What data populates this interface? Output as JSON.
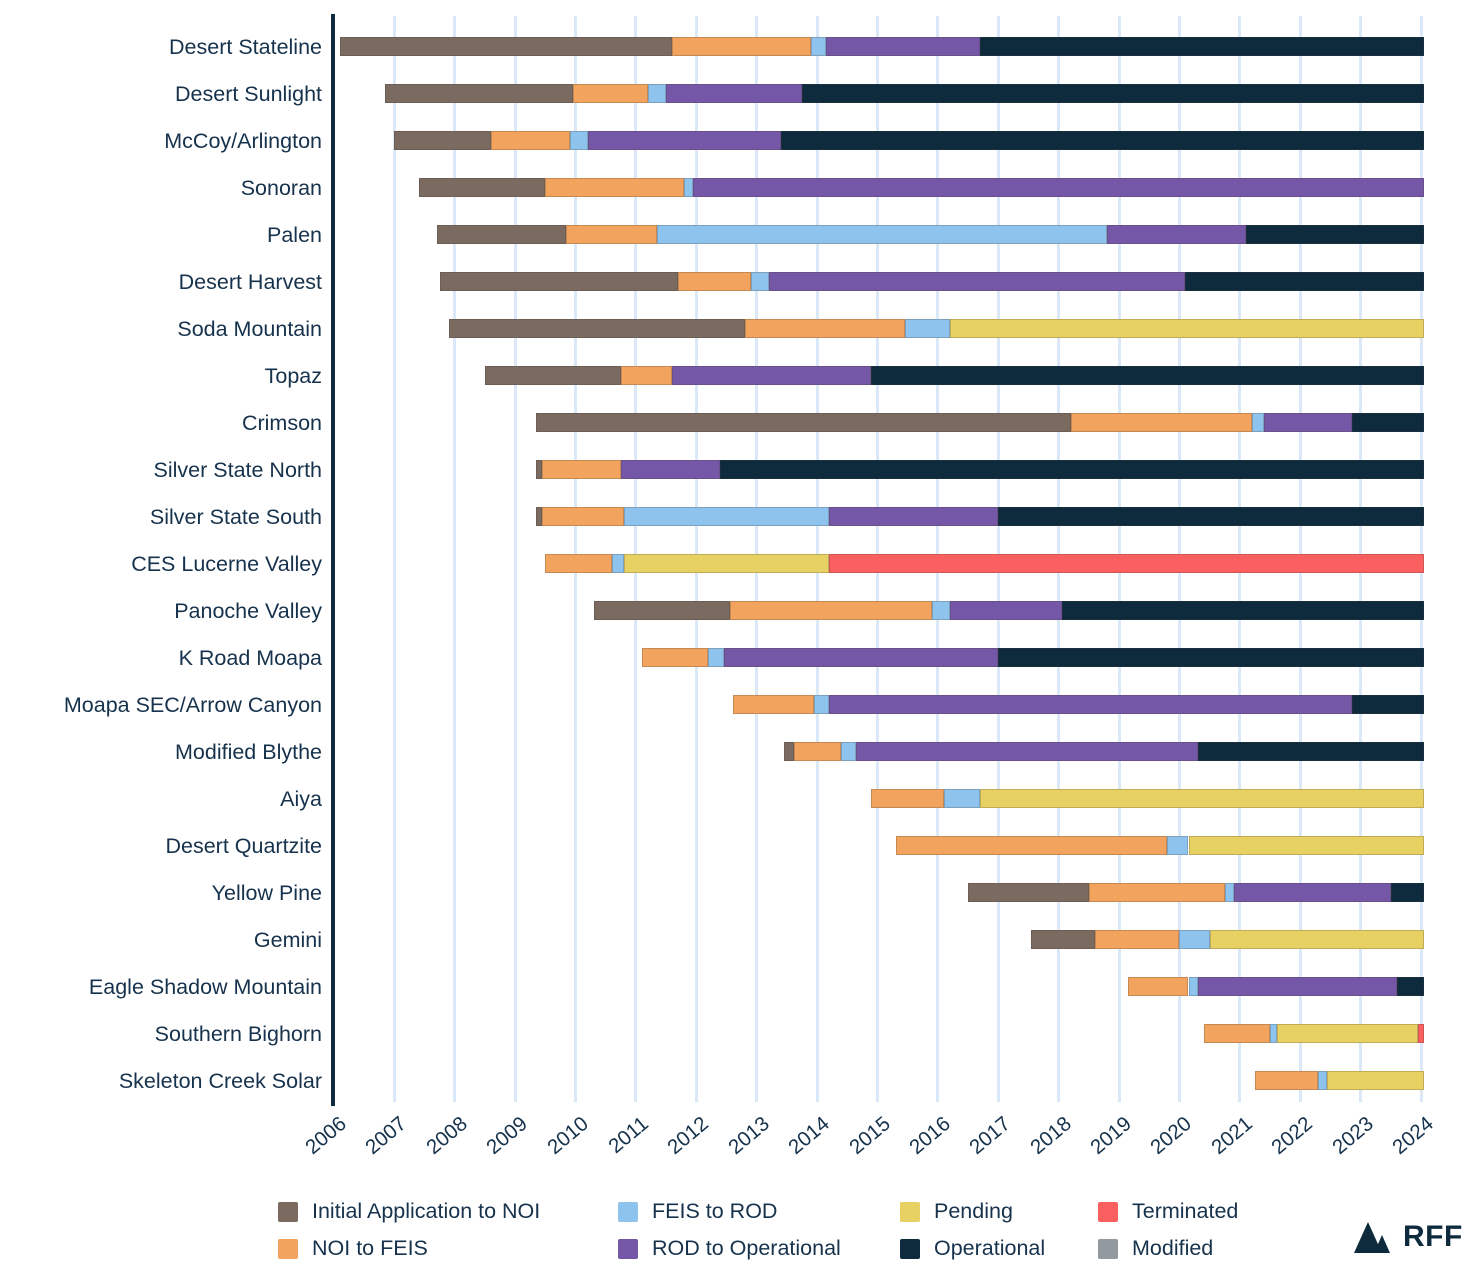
{
  "branding": {
    "logo_text": "RFF"
  },
  "chart_data": {
    "type": "bar",
    "subtype": "horizontal_gantt_timeline",
    "title": "",
    "xlabel": "",
    "ylabel": "",
    "grid": true,
    "legend_position": "bottom",
    "x_axis": {
      "min": 2006,
      "max": 2024.05,
      "tick_labels": [
        "2006",
        "2007",
        "2008",
        "2009",
        "2010",
        "2011",
        "2012",
        "2013",
        "2014",
        "2015",
        "2016",
        "2017",
        "2018",
        "2019",
        "2020",
        "2021",
        "2022",
        "2023",
        "2024"
      ]
    },
    "colors": {
      "grid": "#dbe8f7",
      "axis": "#0e2b3e",
      "text": "#16324c"
    },
    "phases": {
      "initial": {
        "label": "Initial Application to NOI",
        "color": "#7a6a5f"
      },
      "noi": {
        "label": "NOI to FEIS",
        "color": "#f2a35e"
      },
      "feis": {
        "label": "FEIS to ROD",
        "color": "#8dc3ec"
      },
      "rod": {
        "label": "ROD to Operational",
        "color": "#7557a7"
      },
      "pending": {
        "label": "Pending",
        "color": "#e8d163"
      },
      "operational": {
        "label": "Operational",
        "color": "#0e2b3e"
      },
      "terminated": {
        "label": "Terminated",
        "color": "#fb5f5f"
      },
      "modified": {
        "label": "Modified",
        "color": "#92999f"
      }
    },
    "legend_columns": [
      [
        "initial",
        "noi"
      ],
      [
        "feis",
        "rod"
      ],
      [
        "pending",
        "operational"
      ],
      [
        "terminated",
        "modified"
      ]
    ],
    "projects": [
      {
        "name": "Desert Stateline",
        "segments": [
          [
            "initial",
            2006.1,
            2011.6
          ],
          [
            "noi",
            2011.6,
            2013.9
          ],
          [
            "feis",
            2013.9,
            2014.15
          ],
          [
            "rod",
            2014.15,
            2016.7
          ],
          [
            "operational",
            2016.7,
            2024.05
          ]
        ]
      },
      {
        "name": "Desert Sunlight",
        "segments": [
          [
            "initial",
            2006.85,
            2009.95
          ],
          [
            "noi",
            2009.95,
            2011.2
          ],
          [
            "feis",
            2011.2,
            2011.5
          ],
          [
            "rod",
            2011.5,
            2013.75
          ],
          [
            "operational",
            2013.75,
            2024.05
          ]
        ]
      },
      {
        "name": "McCoy/Arlington",
        "segments": [
          [
            "initial",
            2007.0,
            2008.6
          ],
          [
            "noi",
            2008.6,
            2009.9
          ],
          [
            "feis",
            2009.9,
            2010.2
          ],
          [
            "rod",
            2010.2,
            2013.4
          ],
          [
            "operational",
            2013.4,
            2024.05
          ]
        ]
      },
      {
        "name": "Sonoran",
        "segments": [
          [
            "initial",
            2007.4,
            2009.5
          ],
          [
            "noi",
            2009.5,
            2011.8
          ],
          [
            "feis",
            2011.8,
            2011.95
          ],
          [
            "rod",
            2011.95,
            2024.05
          ]
        ]
      },
      {
        "name": "Palen",
        "segments": [
          [
            "initial",
            2007.7,
            2009.85
          ],
          [
            "noi",
            2009.85,
            2011.35
          ],
          [
            "feis",
            2011.35,
            2018.8
          ],
          [
            "rod",
            2018.8,
            2021.1
          ],
          [
            "operational",
            2021.1,
            2024.05
          ]
        ]
      },
      {
        "name": "Desert Harvest",
        "segments": [
          [
            "initial",
            2007.75,
            2011.7
          ],
          [
            "noi",
            2011.7,
            2012.9
          ],
          [
            "feis",
            2012.9,
            2013.2
          ],
          [
            "rod",
            2013.2,
            2020.1
          ],
          [
            "operational",
            2020.1,
            2024.05
          ]
        ]
      },
      {
        "name": "Soda Mountain",
        "segments": [
          [
            "initial",
            2007.9,
            2012.8
          ],
          [
            "noi",
            2012.8,
            2015.45
          ],
          [
            "feis",
            2015.45,
            2016.2
          ],
          [
            "pending",
            2016.2,
            2024.05
          ]
        ]
      },
      {
        "name": "Topaz",
        "segments": [
          [
            "initial",
            2008.5,
            2010.75
          ],
          [
            "noi",
            2010.75,
            2011.6
          ],
          [
            "rod",
            2011.6,
            2014.9
          ],
          [
            "operational",
            2014.9,
            2024.05
          ]
        ]
      },
      {
        "name": "Crimson",
        "segments": [
          [
            "initial",
            2009.35,
            2018.2
          ],
          [
            "noi",
            2018.2,
            2021.2
          ],
          [
            "feis",
            2021.2,
            2021.4
          ],
          [
            "rod",
            2021.4,
            2022.85
          ],
          [
            "operational",
            2022.85,
            2024.05
          ]
        ]
      },
      {
        "name": "Silver State North",
        "segments": [
          [
            "initial",
            2009.35,
            2009.45
          ],
          [
            "noi",
            2009.45,
            2010.75
          ],
          [
            "rod",
            2010.75,
            2012.4
          ],
          [
            "operational",
            2012.4,
            2024.05
          ]
        ]
      },
      {
        "name": "Silver State South",
        "segments": [
          [
            "initial",
            2009.35,
            2009.45
          ],
          [
            "noi",
            2009.45,
            2010.8
          ],
          [
            "feis",
            2010.8,
            2014.2
          ],
          [
            "rod",
            2014.2,
            2017.0
          ],
          [
            "operational",
            2017.0,
            2024.05
          ]
        ]
      },
      {
        "name": "CES Lucerne Valley",
        "segments": [
          [
            "noi",
            2009.5,
            2010.6
          ],
          [
            "feis",
            2010.6,
            2010.8
          ],
          [
            "pending",
            2010.8,
            2014.2
          ],
          [
            "terminated",
            2014.2,
            2024.05
          ]
        ]
      },
      {
        "name": "Panoche Valley",
        "segments": [
          [
            "initial",
            2010.3,
            2012.55
          ],
          [
            "noi",
            2012.55,
            2015.9
          ],
          [
            "feis",
            2015.9,
            2016.2
          ],
          [
            "rod",
            2016.2,
            2018.05
          ],
          [
            "operational",
            2018.05,
            2024.05
          ]
        ]
      },
      {
        "name": "K Road Moapa",
        "segments": [
          [
            "noi",
            2011.1,
            2012.2
          ],
          [
            "feis",
            2012.2,
            2012.45
          ],
          [
            "rod",
            2012.45,
            2017.0
          ],
          [
            "operational",
            2017.0,
            2024.05
          ]
        ]
      },
      {
        "name": "Moapa SEC/Arrow Canyon",
        "segments": [
          [
            "noi",
            2012.6,
            2013.95
          ],
          [
            "feis",
            2013.95,
            2014.2
          ],
          [
            "rod",
            2014.2,
            2022.85
          ],
          [
            "operational",
            2022.85,
            2024.05
          ]
        ]
      },
      {
        "name": "Modified Blythe",
        "segments": [
          [
            "initial",
            2013.45,
            2013.62
          ],
          [
            "noi",
            2013.62,
            2014.4
          ],
          [
            "feis",
            2014.4,
            2014.65
          ],
          [
            "rod",
            2014.65,
            2020.3
          ],
          [
            "operational",
            2020.3,
            2024.05
          ]
        ]
      },
      {
        "name": "Aiya",
        "segments": [
          [
            "noi",
            2014.9,
            2016.1
          ],
          [
            "feis",
            2016.1,
            2016.7
          ],
          [
            "pending",
            2016.7,
            2024.05
          ]
        ]
      },
      {
        "name": "Desert Quartzite",
        "segments": [
          [
            "noi",
            2015.3,
            2019.8
          ],
          [
            "feis",
            2019.8,
            2020.15
          ],
          [
            "pending",
            2020.15,
            2024.05
          ]
        ]
      },
      {
        "name": "Yellow Pine",
        "segments": [
          [
            "initial",
            2016.5,
            2018.5
          ],
          [
            "noi",
            2018.5,
            2020.75
          ],
          [
            "feis",
            2020.75,
            2020.9
          ],
          [
            "rod",
            2020.9,
            2023.5
          ],
          [
            "operational",
            2023.5,
            2024.05
          ]
        ]
      },
      {
        "name": "Gemini",
        "segments": [
          [
            "initial",
            2017.55,
            2018.6
          ],
          [
            "noi",
            2018.6,
            2020.0
          ],
          [
            "feis",
            2020.0,
            2020.5
          ],
          [
            "pending",
            2020.5,
            2024.05
          ]
        ]
      },
      {
        "name": "Eagle Shadow Mountain",
        "segments": [
          [
            "noi",
            2019.15,
            2020.15
          ],
          [
            "feis",
            2020.15,
            2020.3
          ],
          [
            "rod",
            2020.3,
            2023.6
          ],
          [
            "operational",
            2023.6,
            2024.05
          ]
        ]
      },
      {
        "name": "Southern Bighorn",
        "segments": [
          [
            "noi",
            2020.4,
            2021.5
          ],
          [
            "feis",
            2021.5,
            2021.62
          ],
          [
            "pending",
            2021.62,
            2023.95
          ],
          [
            "terminated",
            2023.95,
            2024.05
          ]
        ]
      },
      {
        "name": "Skeleton Creek Solar",
        "segments": [
          [
            "noi",
            2021.25,
            2022.3
          ],
          [
            "feis",
            2022.3,
            2022.45
          ],
          [
            "pending",
            2022.45,
            2024.05
          ]
        ]
      }
    ]
  }
}
